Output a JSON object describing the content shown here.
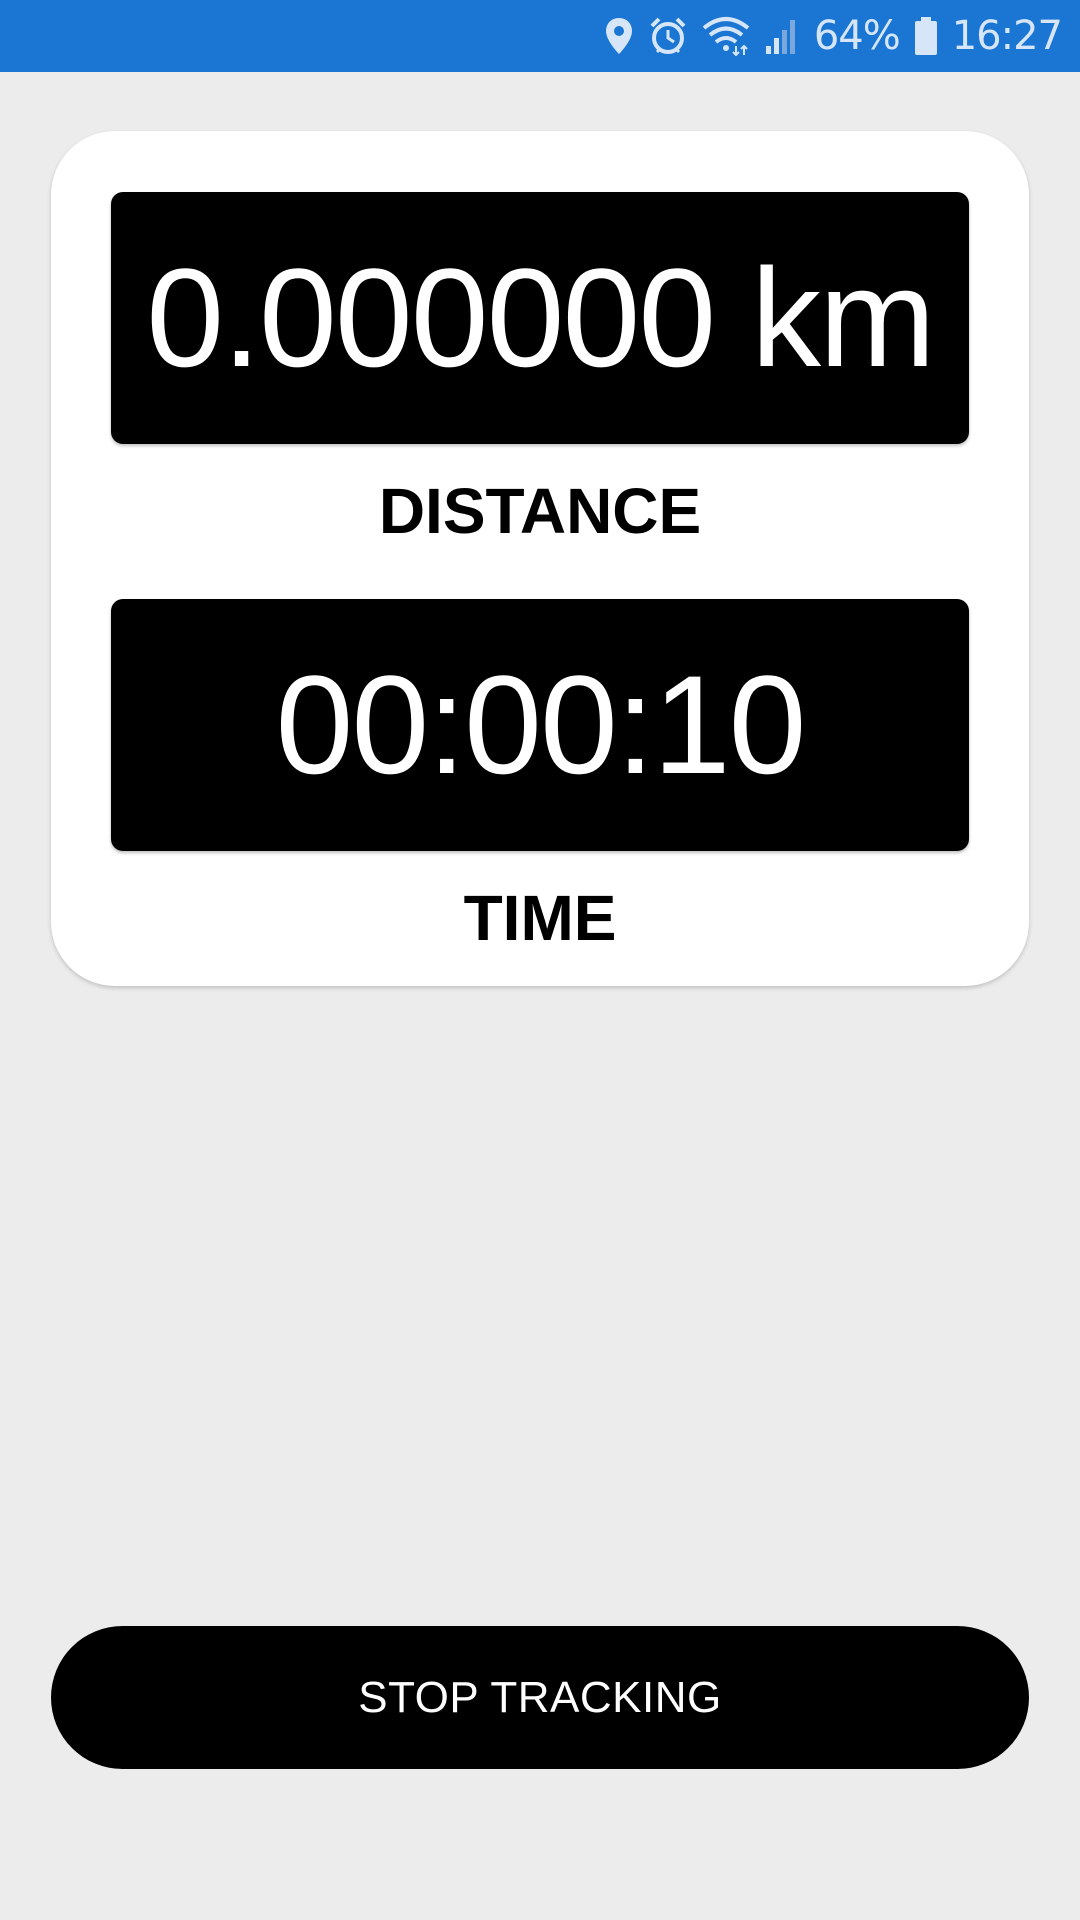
{
  "status_bar": {
    "battery_percent": "64%",
    "time": "16:27",
    "icons": [
      "location-icon",
      "alarm-icon",
      "wifi-icon",
      "signal-icon",
      "battery-icon"
    ],
    "background_color": "#1a76d2"
  },
  "tracker": {
    "distance_value": "0.000000 km",
    "distance_label": "DISTANCE",
    "time_value": "00:00:10",
    "time_label": "TIME"
  },
  "actions": {
    "stop_label": "STOP TRACKING"
  }
}
